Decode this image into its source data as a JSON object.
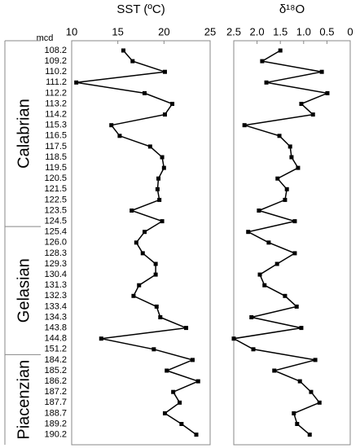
{
  "chart_data": {
    "type": "line",
    "y_label": "mcd",
    "categories": [
      "108.2",
      "109.2",
      "110.2",
      "111.2",
      "112.2",
      "113.2",
      "114.2",
      "115.3",
      "116.5",
      "117.5",
      "118.5",
      "119.5",
      "120.5",
      "121.5",
      "122.5",
      "123.5",
      "124.5",
      "125.4",
      "126.0",
      "128.3",
      "129.3",
      "130.4",
      "131.3",
      "132.3",
      "133.4",
      "134.3",
      "143.8",
      "144.8",
      "151.2",
      "184.2",
      "185.2",
      "186.2",
      "187.2",
      "187.7",
      "188.7",
      "189.2",
      "190.2"
    ],
    "stages": [
      "Calabrian",
      "Gelasian",
      "Piacenzian"
    ],
    "panels": [
      {
        "title": "SST (ºC)",
        "xlim": [
          10,
          25
        ],
        "xticks": [
          10,
          15,
          20,
          25
        ],
        "color": "#000000",
        "values": [
          15.6,
          16.6,
          20.1,
          10.5,
          17.9,
          20.9,
          20.1,
          14.3,
          15.2,
          18.5,
          19.8,
          20.0,
          19.4,
          19.3,
          19.5,
          16.5,
          19.8,
          17.9,
          17.0,
          17.7,
          19.1,
          19.1,
          17.3,
          16.7,
          19.2,
          19.6,
          22.4,
          13.2,
          18.9,
          23.1,
          20.3,
          23.7,
          21.0,
          21.7,
          20.1,
          21.9,
          23.5
        ]
      },
      {
        "title": "δ¹⁸O",
        "xlim": [
          2.5,
          0
        ],
        "xticks": [
          2.5,
          {
            "value": 2,
            "label": "2.0"
          },
          1.5,
          {
            "value": 1,
            "label": "1.0"
          },
          0.5,
          0
        ],
        "color": "#000000",
        "values": [
          1.5,
          1.89,
          0.61,
          1.8,
          0.49,
          1.05,
          0.8,
          2.27,
          1.52,
          1.29,
          1.26,
          1.12,
          1.56,
          1.36,
          1.4,
          1.96,
          1.19,
          2.19,
          1.75,
          1.19,
          1.57,
          1.94,
          1.84,
          1.4,
          1.15,
          2.12,
          1.05,
          2.5,
          2.08,
          0.75,
          1.63,
          1.08,
          0.84,
          0.66,
          1.21,
          1.14,
          0.87
        ]
      }
    ]
  }
}
